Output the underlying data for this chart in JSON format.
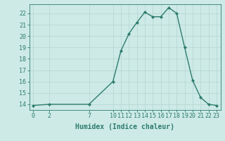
{
  "x": [
    0,
    2,
    7,
    10,
    11,
    12,
    13,
    14,
    15,
    16,
    17,
    18,
    19,
    20,
    21,
    22,
    23
  ],
  "y": [
    13.9,
    14.0,
    14.0,
    16.0,
    18.7,
    20.2,
    21.2,
    22.1,
    21.7,
    21.7,
    22.5,
    22.0,
    19.0,
    16.1,
    14.6,
    14.0,
    13.9
  ],
  "line_color": "#2d7c6e",
  "marker_color": "#2d7c6e",
  "bg_color": "#cdeae6",
  "grid_color_major": "#b8d8d4",
  "grid_color_minor": "#daeae8",
  "xlabel": "Humidex (Indice chaleur)",
  "ylim": [
    13.5,
    22.8
  ],
  "xlim": [
    -0.5,
    23.5
  ],
  "yticks": [
    14,
    15,
    16,
    17,
    18,
    19,
    20,
    21,
    22
  ],
  "xticks": [
    0,
    2,
    7,
    10,
    11,
    12,
    13,
    14,
    15,
    16,
    17,
    18,
    19,
    20,
    21,
    22,
    23
  ],
  "tick_color": "#2d7c6e",
  "label_color": "#2d7c6e",
  "font_family": "monospace",
  "xlabel_fontsize": 7,
  "tick_fontsize": 6
}
